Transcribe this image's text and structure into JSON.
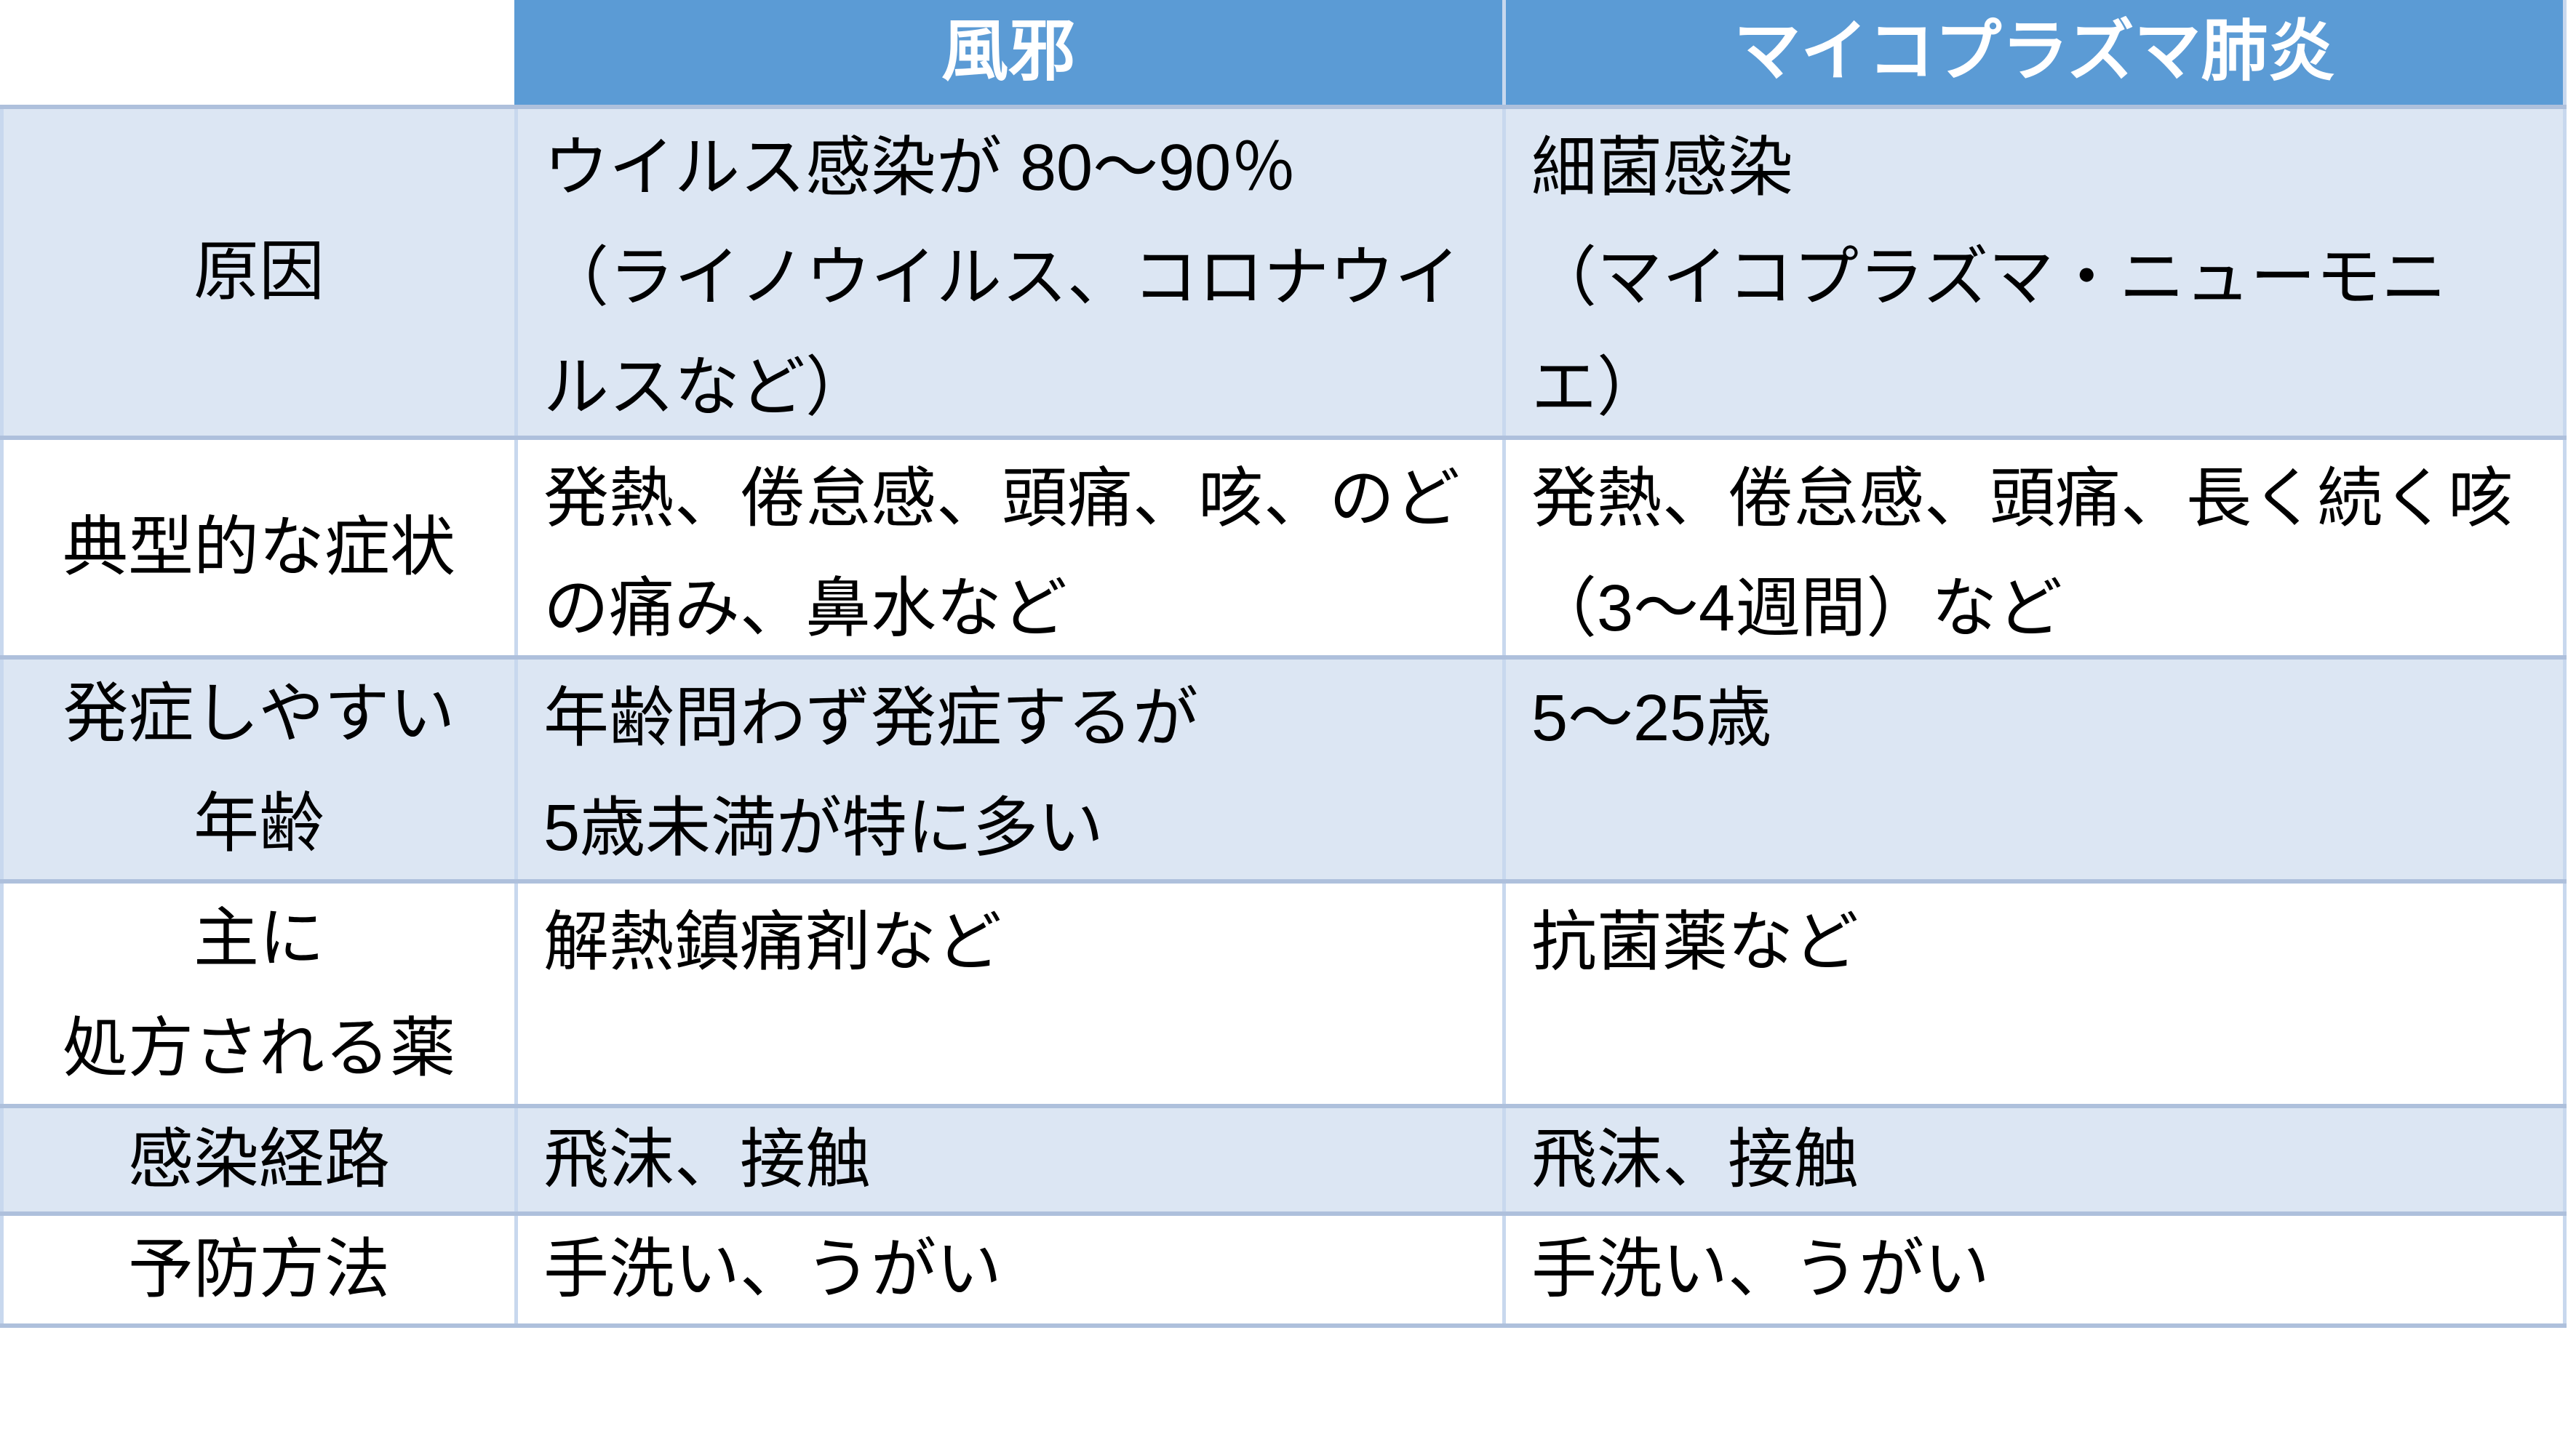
{
  "colors": {
    "header_bg": "#5B9BD5",
    "header_text": "#FFFFFF",
    "band_bg": "#DCE6F3",
    "border_h": "#AEC0DC",
    "border_v": "#C8D8EE",
    "text": "#000000"
  },
  "table": {
    "header": {
      "corner": "",
      "kaze": "風邪",
      "mycoplasma": "マイコプラズマ肺炎"
    },
    "rows": [
      {
        "label": "原因",
        "kaze": "ウイルス感染が 80～90％\n（ライノウイルス、コロナウイ\nルスなど）",
        "mycoplasma": "細菌感染\n（マイコプラズマ・ニューモニエ）"
      },
      {
        "label": "典型的な症状",
        "kaze": "発熱、倦怠感、頭痛、咳、のど\nの痛み、鼻水など",
        "mycoplasma": "発熱、倦怠感、頭痛、長く続く咳\n（3～4週間）など"
      },
      {
        "label": "発症しやすい\n年齢",
        "kaze": "年齢問わず発症するが\n5歳未満が特に多い",
        "mycoplasma": "5～25歳"
      },
      {
        "label": "主に\n処方される薬",
        "kaze": "解熱鎮痛剤など",
        "mycoplasma": "抗菌薬など"
      },
      {
        "label": "感染経路",
        "kaze": "飛沫、接触",
        "mycoplasma": "飛沫、接触"
      },
      {
        "label": "予防方法",
        "kaze": "手洗い、うがい",
        "mycoplasma": "手洗い、うがい"
      }
    ]
  }
}
